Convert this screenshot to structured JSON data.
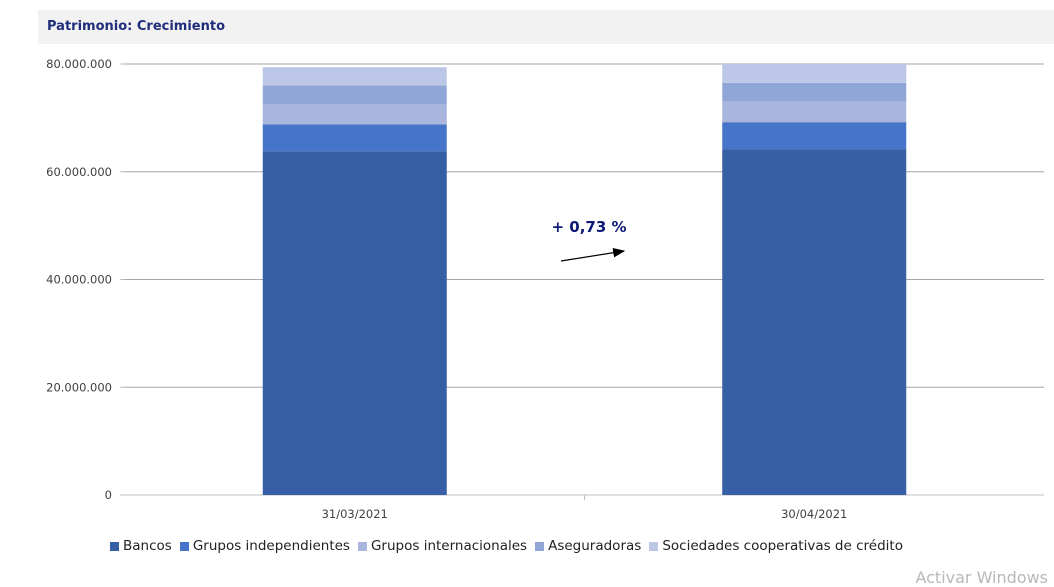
{
  "header": {
    "title": "Patrimonio: Crecimiento"
  },
  "annotation": {
    "text": "+ 0,73 %",
    "color": "#0d1a75"
  },
  "watermark": "Activar Windows",
  "colors": {
    "Bancos": "#365fa6",
    "Grupos independientes": "#4574c8",
    "Grupos internacionales": "#a8b6de",
    "Aseguradoras": "#8fa6d6",
    "Sociedades cooperativas de crédito": "#bcc6e6"
  },
  "chart_data": {
    "type": "bar",
    "stacked": true,
    "title": "Patrimonio: Crecimiento",
    "categories": [
      "31/03/2021",
      "30/04/2021"
    ],
    "series": [
      {
        "name": "Bancos",
        "values": [
          63800000,
          64200000
        ]
      },
      {
        "name": "Grupos independientes",
        "values": [
          5000000,
          5000000
        ]
      },
      {
        "name": "Grupos internacionales",
        "values": [
          3700000,
          3800000
        ]
      },
      {
        "name": "Aseguradoras",
        "values": [
          3500000,
          3500000
        ]
      },
      {
        "name": "Sociedades cooperativas de crédito",
        "values": [
          3400000,
          3500000
        ]
      }
    ],
    "yticks": [
      "0",
      "20.000.000",
      "40.000.000",
      "60.000.000",
      "80.000.000"
    ],
    "ylim": [
      0,
      80000000
    ],
    "grid": true,
    "legend_position": "bottom"
  }
}
